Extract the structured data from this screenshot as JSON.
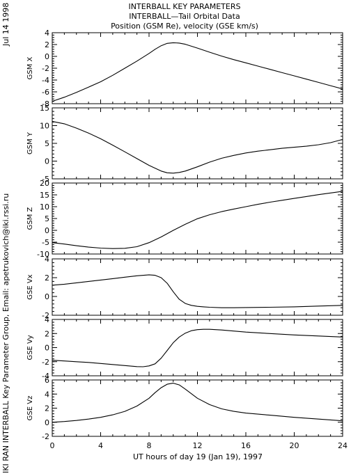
{
  "header": {
    "line1": "INTERBALL KEY PARAMETERS",
    "line2": "INTERBALL—Tail Orbital Data",
    "line3": "Position (GSM Re), velocity (GSE km/s)"
  },
  "side_date": "Jul 14 1998",
  "side_credit": "IKI RAN INTERBALL Key Parameter Group, Email: apetrukovich@iki.rssi.ru",
  "chart_data": {
    "type": "line",
    "xlabel": "UT hours of day  19 (Jan 19), 1997",
    "xlim": [
      0,
      24
    ],
    "xticks": [
      0,
      4,
      8,
      12,
      16,
      20,
      24
    ],
    "panels": [
      {
        "ylabel": "GSM X",
        "ylim": [
          -8,
          4
        ],
        "yticks": [
          -8,
          -6,
          -4,
          -2,
          0,
          2,
          4
        ],
        "x": [
          0,
          1,
          2,
          3,
          4,
          5,
          6,
          7,
          8,
          8.5,
          9,
          9.5,
          10,
          10.5,
          11,
          12,
          13,
          14,
          15,
          16,
          17,
          18,
          19,
          20,
          21,
          22,
          23,
          24
        ],
        "y": [
          -7.6,
          -6.9,
          -6.1,
          -5.2,
          -4.3,
          -3.2,
          -2.0,
          -0.8,
          0.5,
          1.2,
          1.8,
          2.2,
          2.3,
          2.25,
          2.05,
          1.4,
          0.7,
          0.05,
          -0.55,
          -1.1,
          -1.65,
          -2.2,
          -2.75,
          -3.3,
          -3.85,
          -4.4,
          -4.95,
          -5.5
        ]
      },
      {
        "ylabel": "GSM Y",
        "ylim": [
          -5,
          15
        ],
        "yticks": [
          -5,
          0,
          5,
          10,
          15
        ],
        "x": [
          0,
          1,
          2,
          3,
          4,
          5,
          6,
          7,
          8,
          9,
          9.5,
          10,
          10.5,
          11,
          12,
          13,
          14,
          15,
          16,
          17,
          18,
          19,
          20,
          21,
          22,
          23,
          24
        ],
        "y": [
          11.2,
          10.5,
          9.3,
          7.9,
          6.3,
          4.5,
          2.6,
          0.7,
          -1.2,
          -2.8,
          -3.3,
          -3.4,
          -3.2,
          -2.8,
          -1.6,
          -0.3,
          0.8,
          1.6,
          2.3,
          2.8,
          3.2,
          3.6,
          3.9,
          4.2,
          4.6,
          5.2,
          6.1
        ]
      },
      {
        "ylabel": "GSM Z",
        "ylim": [
          -10,
          20
        ],
        "yticks": [
          -10,
          -5,
          0,
          5,
          10,
          15,
          20
        ],
        "x": [
          0,
          1,
          2,
          3,
          4,
          5,
          6,
          7,
          8,
          9,
          10,
          11,
          12,
          13,
          14,
          15,
          16,
          17,
          18,
          19,
          20,
          21,
          22,
          23,
          24
        ],
        "y": [
          -5.2,
          -5.8,
          -6.5,
          -7.1,
          -7.5,
          -7.7,
          -7.6,
          -6.9,
          -5.2,
          -2.8,
          0.0,
          2.6,
          4.9,
          6.6,
          7.9,
          9.0,
          10.0,
          11.0,
          11.9,
          12.7,
          13.5,
          14.3,
          15.1,
          15.8,
          16.5
        ]
      },
      {
        "ylabel": "GSE Vx",
        "ylim": [
          -2,
          4
        ],
        "yticks": [
          -2,
          0,
          2,
          4
        ],
        "x": [
          0,
          1,
          2,
          3,
          4,
          5,
          6,
          7,
          8,
          8.5,
          9,
          9.5,
          10,
          10.5,
          11,
          11.5,
          12,
          12.5,
          13,
          14,
          15,
          16,
          18,
          20,
          22,
          24
        ],
        "y": [
          1.2,
          1.3,
          1.45,
          1.6,
          1.75,
          1.9,
          2.05,
          2.2,
          2.3,
          2.25,
          2.0,
          1.4,
          0.5,
          -0.3,
          -0.75,
          -0.95,
          -1.05,
          -1.1,
          -1.15,
          -1.2,
          -1.2,
          -1.18,
          -1.15,
          -1.1,
          -1.02,
          -0.95
        ]
      },
      {
        "ylabel": "GSE Vy",
        "ylim": [
          -4,
          4
        ],
        "yticks": [
          -4,
          -2,
          0,
          2,
          4
        ],
        "x": [
          0,
          1,
          2,
          3,
          4,
          5,
          6,
          7,
          7.5,
          8,
          8.5,
          9,
          9.5,
          10,
          10.5,
          11,
          11.5,
          12,
          12.5,
          13,
          14,
          15,
          16,
          18,
          20,
          22,
          24
        ],
        "y": [
          -1.8,
          -1.9,
          -2.0,
          -2.1,
          -2.25,
          -2.4,
          -2.55,
          -2.7,
          -2.72,
          -2.6,
          -2.3,
          -1.5,
          -0.4,
          0.7,
          1.5,
          2.05,
          2.4,
          2.55,
          2.6,
          2.6,
          2.5,
          2.35,
          2.2,
          2.0,
          1.8,
          1.65,
          1.5
        ]
      },
      {
        "ylabel": "GSE Vz",
        "ylim": [
          -2,
          6
        ],
        "yticks": [
          -2,
          0,
          2,
          4,
          6
        ],
        "x": [
          0,
          1,
          2,
          3,
          4,
          5,
          6,
          7,
          8,
          8.5,
          9,
          9.5,
          10,
          10.5,
          11,
          12,
          13,
          14,
          15,
          16,
          18,
          20,
          22,
          24
        ],
        "y": [
          0.0,
          0.1,
          0.25,
          0.45,
          0.7,
          1.05,
          1.55,
          2.3,
          3.4,
          4.2,
          4.9,
          5.4,
          5.55,
          5.3,
          4.7,
          3.4,
          2.5,
          1.9,
          1.55,
          1.3,
          1.0,
          0.7,
          0.45,
          0.2
        ]
      }
    ]
  }
}
